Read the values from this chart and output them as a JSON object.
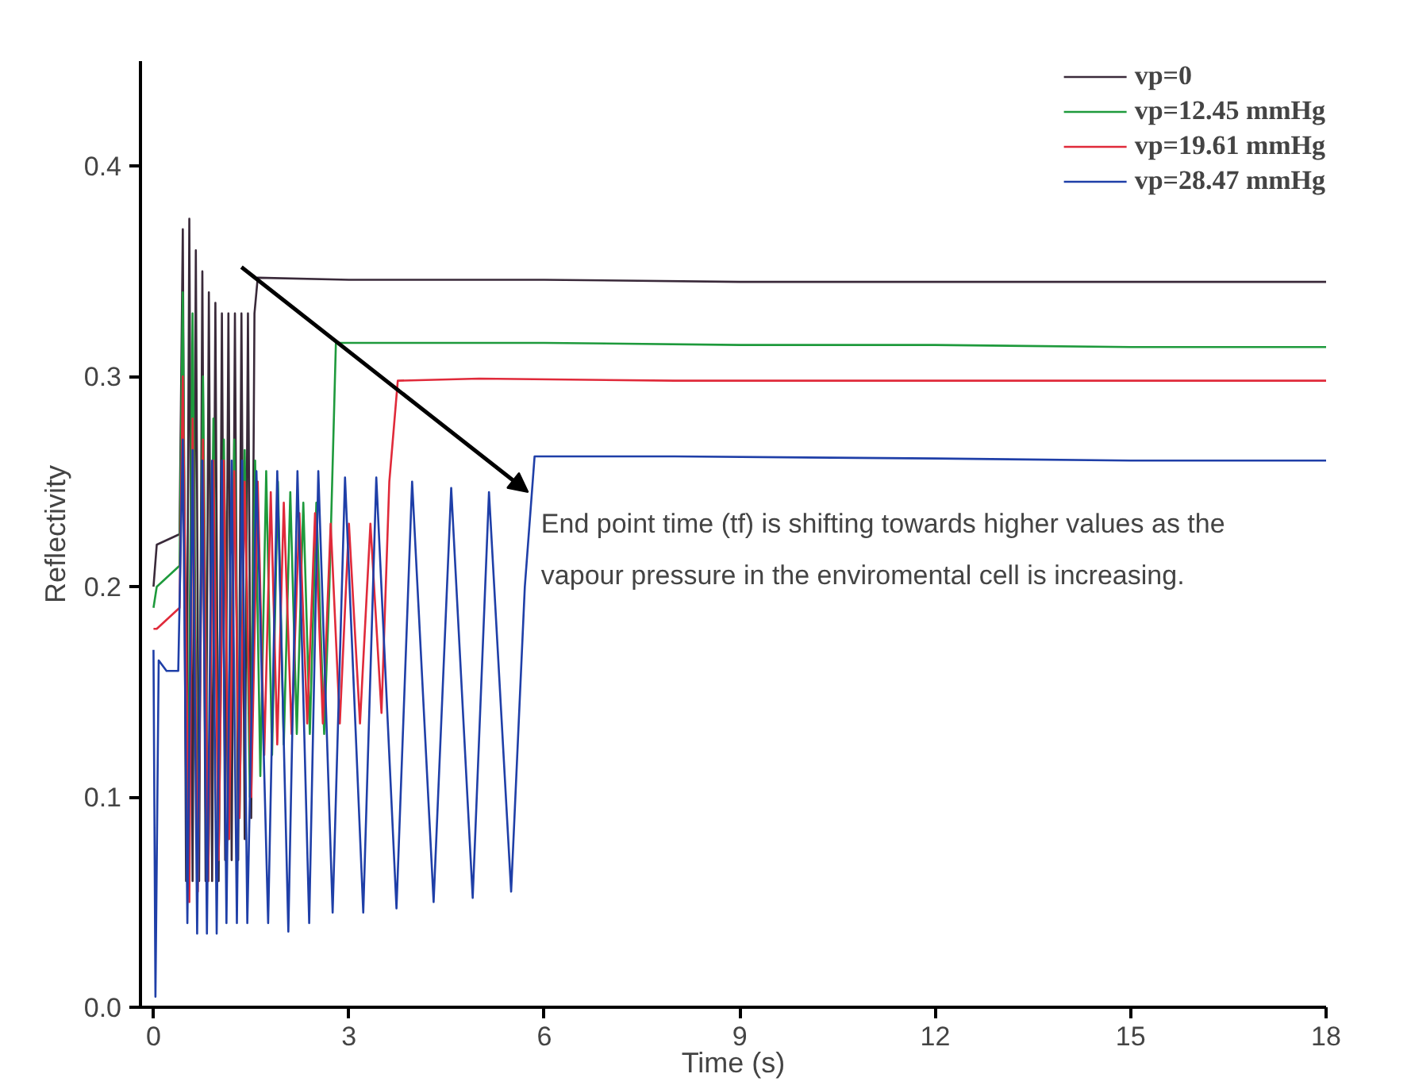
{
  "chart_data": {
    "type": "line",
    "xlabel": "Time (s)",
    "ylabel": "Reflectivity",
    "xlim": [
      -0.2,
      18
    ],
    "ylim": [
      0,
      0.45
    ],
    "xticks": [
      0,
      3,
      6,
      9,
      12,
      15,
      18
    ],
    "yticks": [
      {
        "value": 0,
        "label": "0.0"
      },
      0.1,
      0.2,
      0.3,
      0.4
    ],
    "grid": false,
    "legend": "top right",
    "marker": "none",
    "line_style": "solid",
    "annotations": [
      {
        "text": "End point time (tf) is shifting towards higher values as the\nvapour pressure in the enviromental cell is increasing.",
        "x": 5.75,
        "y": 0.245
      }
    ],
    "series": [
      {
        "name": "vp=0",
        "color": "#3a2a3a",
        "x": [
          0,
          0.05,
          0.4,
          0.45,
          0.5,
          0.55,
          0.6,
          0.65,
          0.7,
          0.75,
          0.8,
          0.85,
          0.9,
          0.95,
          1.0,
          1.05,
          1.1,
          1.15,
          1.2,
          1.25,
          1.3,
          1.35,
          1.4,
          1.45,
          1.5,
          1.55,
          1.6,
          3,
          6,
          9,
          12,
          15,
          18
        ],
        "values": [
          0.2,
          0.22,
          0.225,
          0.37,
          0.06,
          0.375,
          0.06,
          0.36,
          0.06,
          0.35,
          0.06,
          0.34,
          0.06,
          0.335,
          0.06,
          0.33,
          0.07,
          0.33,
          0.07,
          0.33,
          0.07,
          0.33,
          0.08,
          0.33,
          0.09,
          0.33,
          0.347,
          0.346,
          0.346,
          0.345,
          0.345,
          0.345,
          0.345
        ]
      },
      {
        "name": "vp=12.45 mmHg",
        "color": "#1e9a3c",
        "x": [
          0,
          0.05,
          0.4,
          0.45,
          0.52,
          0.6,
          0.68,
          0.76,
          0.84,
          0.92,
          1.0,
          1.08,
          1.16,
          1.24,
          1.32,
          1.4,
          1.48,
          1.56,
          1.64,
          1.73,
          1.82,
          1.91,
          2.0,
          2.1,
          2.2,
          2.3,
          2.4,
          2.5,
          2.62,
          2.7,
          2.8,
          4,
          6,
          9,
          12,
          15,
          18
        ],
        "values": [
          0.19,
          0.2,
          0.21,
          0.34,
          0.06,
          0.33,
          0.06,
          0.3,
          0.06,
          0.28,
          0.07,
          0.27,
          0.08,
          0.27,
          0.09,
          0.265,
          0.1,
          0.26,
          0.11,
          0.255,
          0.12,
          0.25,
          0.125,
          0.245,
          0.13,
          0.24,
          0.13,
          0.24,
          0.13,
          0.2,
          0.316,
          0.316,
          0.316,
          0.315,
          0.315,
          0.314,
          0.314
        ]
      },
      {
        "name": "vp=19.61 mmHg",
        "color": "#e02a3a",
        "x": [
          0,
          0.05,
          0.4,
          0.45,
          0.55,
          0.6,
          0.68,
          0.76,
          0.84,
          0.92,
          1.0,
          1.08,
          1.16,
          1.24,
          1.32,
          1.4,
          1.5,
          1.6,
          1.7,
          1.8,
          1.9,
          2.0,
          2.12,
          2.24,
          2.36,
          2.48,
          2.6,
          2.72,
          2.86,
          3.0,
          3.17,
          3.33,
          3.5,
          3.62,
          3.75,
          5,
          8,
          12,
          15,
          18
        ],
        "values": [
          0.18,
          0.18,
          0.19,
          0.3,
          0.05,
          0.28,
          0.055,
          0.27,
          0.06,
          0.26,
          0.07,
          0.26,
          0.08,
          0.255,
          0.09,
          0.25,
          0.1,
          0.25,
          0.12,
          0.245,
          0.125,
          0.24,
          0.13,
          0.235,
          0.135,
          0.235,
          0.135,
          0.23,
          0.135,
          0.23,
          0.135,
          0.23,
          0.14,
          0.25,
          0.298,
          0.299,
          0.298,
          0.298,
          0.298,
          0.298
        ]
      },
      {
        "name": "vp=28.47 mmHg",
        "color": "#1f3fa8",
        "x": [
          0,
          0.03,
          0.08,
          0.2,
          0.38,
          0.45,
          0.52,
          0.6,
          0.67,
          0.75,
          0.82,
          0.9,
          0.97,
          1.05,
          1.12,
          1.2,
          1.28,
          1.36,
          1.44,
          1.58,
          1.76,
          1.9,
          2.07,
          2.21,
          2.39,
          2.53,
          2.75,
          2.94,
          3.22,
          3.42,
          3.73,
          3.97,
          4.3,
          4.57,
          4.9,
          5.15,
          5.49,
          5.7,
          5.85,
          8,
          12,
          15,
          18
        ],
        "values": [
          0.17,
          0.005,
          0.165,
          0.16,
          0.16,
          0.27,
          0.04,
          0.265,
          0.035,
          0.26,
          0.035,
          0.26,
          0.035,
          0.26,
          0.04,
          0.26,
          0.04,
          0.26,
          0.04,
          0.255,
          0.04,
          0.255,
          0.036,
          0.255,
          0.04,
          0.255,
          0.045,
          0.252,
          0.045,
          0.252,
          0.047,
          0.25,
          0.05,
          0.247,
          0.052,
          0.245,
          0.055,
          0.2,
          0.262,
          0.262,
          0.261,
          0.26,
          0.26
        ]
      }
    ]
  }
}
